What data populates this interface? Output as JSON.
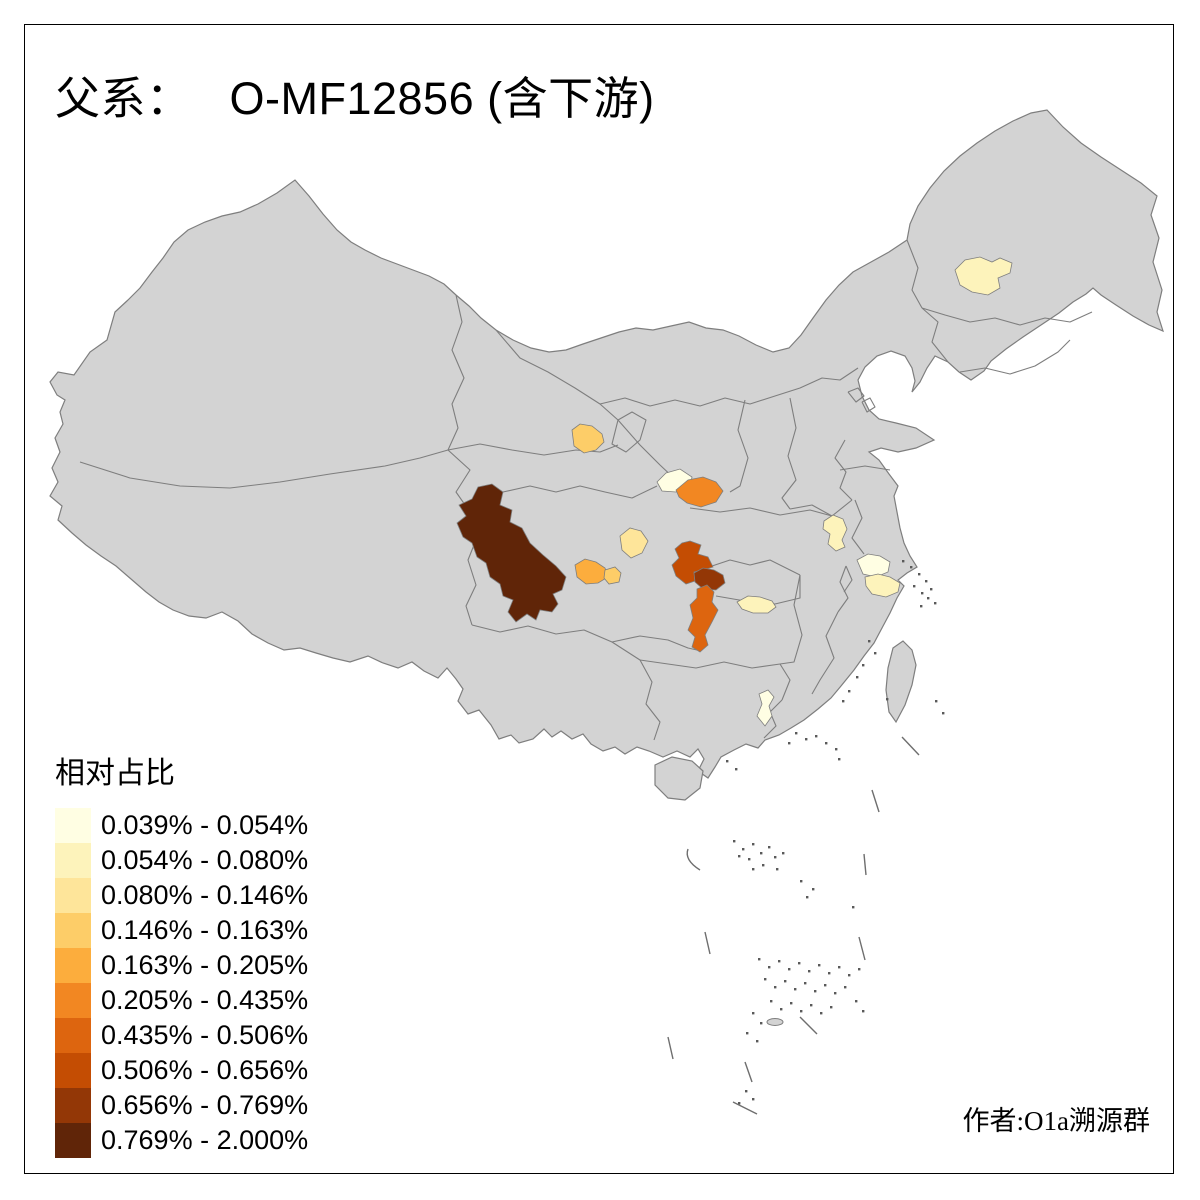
{
  "title": {
    "prefix": "父系：",
    "main": "O-MF12856 (含下游)"
  },
  "author_credit": "作者:O1a溯源群",
  "legend": {
    "title": "相对占比",
    "items": [
      {
        "label": "0.039% - 0.054%",
        "color": "#FFFEE3"
      },
      {
        "label": "0.054% - 0.080%",
        "color": "#FDF3BB"
      },
      {
        "label": "0.080% - 0.146%",
        "color": "#FEE59A"
      },
      {
        "label": "0.146% - 0.163%",
        "color": "#FDCD68"
      },
      {
        "label": "0.163% - 0.205%",
        "color": "#FCAD3D"
      },
      {
        "label": "0.205% - 0.435%",
        "color": "#F28722"
      },
      {
        "label": "0.435% - 0.506%",
        "color": "#DD650F"
      },
      {
        "label": "0.506% - 0.656%",
        "color": "#C44D03"
      },
      {
        "label": "0.656% - 0.769%",
        "color": "#933706"
      },
      {
        "label": "0.769% - 2.000%",
        "color": "#602508"
      }
    ]
  },
  "map": {
    "sea_color": "#FFFFFF",
    "land_color": "#D3D3D3",
    "province_border_color": "#7E7E7E",
    "island_speck_color": "#5A5A5A",
    "dash_line_color": "#6E6E6E",
    "frame_color": "#000000",
    "highlighted_regions": [
      {
        "name": "west-sichuan",
        "legend_class": 9
      },
      {
        "name": "central-gansu",
        "legend_class": 3
      },
      {
        "name": "south-shaanxi-west",
        "legend_class": 0
      },
      {
        "name": "south-shaanxi-east",
        "legend_class": 5
      },
      {
        "name": "north-sichuan",
        "legend_class": 2
      },
      {
        "name": "central-sichuan-west",
        "legend_class": 4
      },
      {
        "name": "central-sichuan-east",
        "legend_class": 3
      },
      {
        "name": "chongqing",
        "legend_class": 7
      },
      {
        "name": "southeast-chongqing",
        "legend_class": 8
      },
      {
        "name": "east-guizhou-strip",
        "legend_class": 6
      },
      {
        "name": "north-hunan",
        "legend_class": 1
      },
      {
        "name": "central-anhui",
        "legend_class": 1
      },
      {
        "name": "north-zhejiang-west",
        "legend_class": 0
      },
      {
        "name": "north-zhejiang-east",
        "legend_class": 1
      },
      {
        "name": "harbin-area",
        "legend_class": 1
      },
      {
        "name": "west-guangdong",
        "legend_class": 0
      }
    ]
  }
}
